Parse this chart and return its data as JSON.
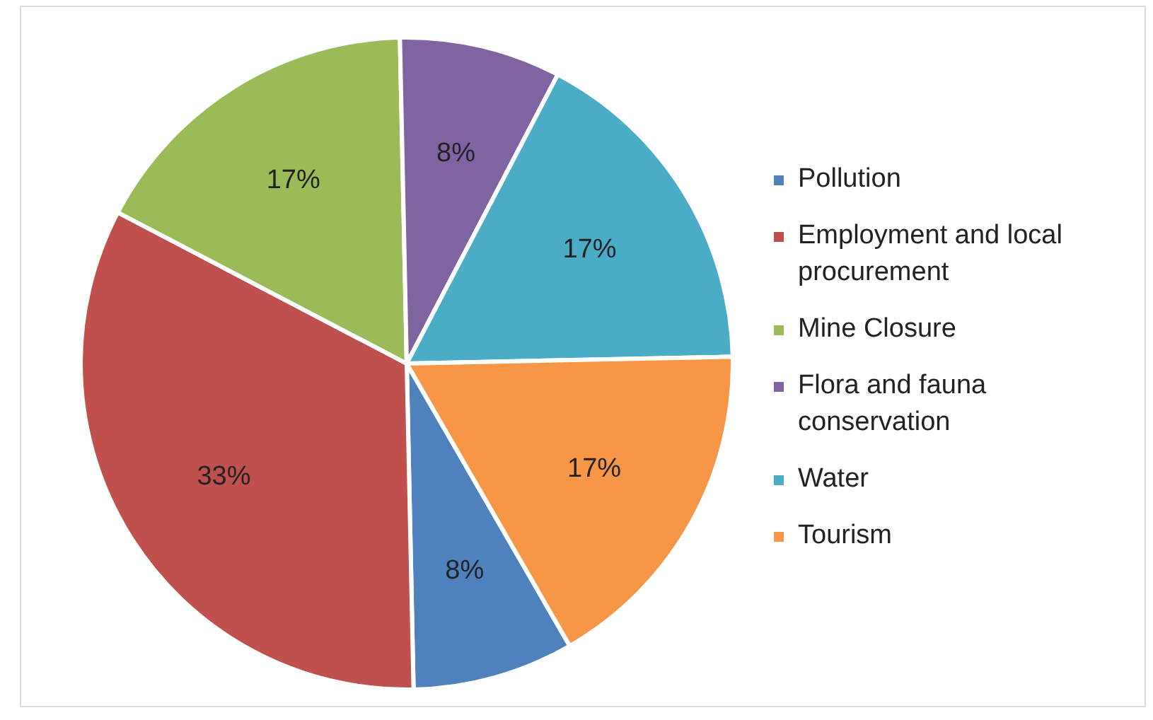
{
  "chart_data": {
    "type": "pie",
    "categories": [
      "Pollution",
      "Employment and local procurement",
      "Mine Closure",
      "Flora and fauna conservation",
      "Water",
      "Tourism"
    ],
    "values": [
      8,
      33,
      17,
      8,
      17,
      17
    ],
    "value_labels": [
      "8%",
      "33%",
      "17%",
      "8%",
      "17%",
      "17%"
    ],
    "colors": [
      "#4f81bd",
      "#c0504d",
      "#9bbb59",
      "#8064a2",
      "#4bacc6",
      "#f79646"
    ],
    "legend": "right"
  }
}
